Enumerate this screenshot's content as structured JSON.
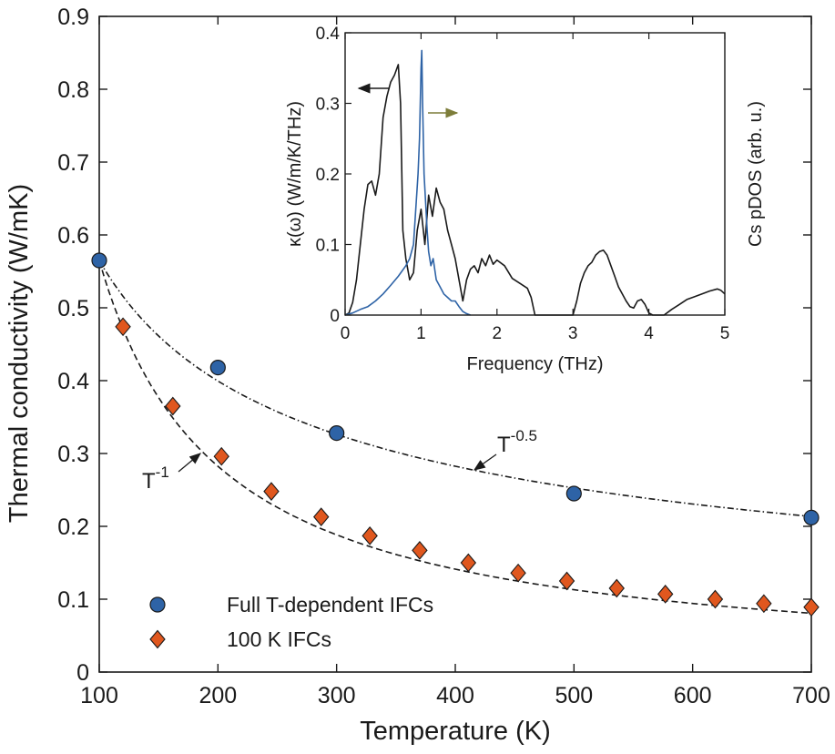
{
  "chart_data": [
    {
      "type": "scatter",
      "xlabel": "Temperature (K)",
      "ylabel": "Thermal conductivity (W/mK)",
      "xlim": [
        100,
        700
      ],
      "ylim": [
        0,
        0.9
      ],
      "xticks": [
        "100",
        "200",
        "300",
        "400",
        "500",
        "600",
        "700"
      ],
      "yticks": [
        "0",
        "0.1",
        "0.2",
        "0.3",
        "0.4",
        "0.5",
        "0.6",
        "0.7",
        "0.8",
        "0.9"
      ],
      "grid": false,
      "legend_position": "bottom-left",
      "series": [
        {
          "name": "Full T-dependent IFCs",
          "marker": "circle",
          "color": "#2e63a6",
          "x": [
            100,
            200,
            300,
            500,
            700
          ],
          "y": [
            0.565,
            0.418,
            0.328,
            0.245,
            0.212
          ]
        },
        {
          "name": "100 K IFCs",
          "marker": "diamond",
          "color": "#e0571e",
          "x": [
            120,
            162,
            203,
            245,
            287,
            328,
            370,
            411,
            453,
            494,
            536,
            577,
            619,
            660,
            700
          ],
          "y": [
            0.474,
            0.365,
            0.296,
            0.248,
            0.213,
            0.187,
            0.167,
            0.15,
            0.136,
            0.125,
            0.115,
            0.107,
            0.1,
            0.094,
            0.089
          ]
        }
      ],
      "fits": [
        {
          "exponent": -0.5,
          "x0": 100,
          "y0": 0.565,
          "style": "dash-dot"
        },
        {
          "exponent": -1,
          "x0": 100,
          "y0": 0.565,
          "style": "dashed"
        }
      ],
      "annotations": [
        {
          "base": "T",
          "sup": "-0.5"
        },
        {
          "base": "T",
          "sup": "-1"
        }
      ]
    },
    {
      "type": "line",
      "xlabel": "Frequency (THz)",
      "ylabel": "κ(ω) (W/m/K/THz)",
      "ylabel_right": "Cs pDOS (arb. u.)",
      "xlim": [
        0,
        5
      ],
      "ylim": [
        0,
        0.4
      ],
      "xticks": [
        "0",
        "1",
        "2",
        "3",
        "4",
        "5"
      ],
      "yticks": [
        "0",
        "0.1",
        "0.2",
        "0.3",
        "0.4"
      ],
      "series": [
        {
          "axis": "left",
          "color": "#1a1a1a",
          "x": [
            0.0,
            0.05,
            0.1,
            0.15,
            0.2,
            0.25,
            0.3,
            0.35,
            0.4,
            0.45,
            0.5,
            0.55,
            0.6,
            0.65,
            0.7,
            0.73,
            0.76,
            0.8,
            0.85,
            0.9,
            0.95,
            1.0,
            1.05,
            1.1,
            1.15,
            1.2,
            1.25,
            1.3,
            1.35,
            1.4,
            1.45,
            1.5,
            1.55,
            1.6,
            1.65,
            1.7,
            1.75,
            1.8,
            1.85,
            1.9,
            1.95,
            2.0,
            2.1,
            2.2,
            2.3,
            2.4,
            2.45,
            2.5,
            2.6,
            2.7,
            2.8,
            2.9,
            3.0,
            3.05,
            3.1,
            3.15,
            3.2,
            3.25,
            3.3,
            3.35,
            3.4,
            3.45,
            3.5,
            3.55,
            3.6,
            3.65,
            3.7,
            3.75,
            3.8,
            3.85,
            3.9,
            3.95,
            4.0,
            4.05,
            4.1,
            4.2,
            4.3,
            4.4,
            4.5,
            4.6,
            4.7,
            4.8,
            4.9,
            4.95,
            5.0
          ],
          "y": [
            0.0,
            0.003,
            0.018,
            0.05,
            0.1,
            0.15,
            0.185,
            0.19,
            0.17,
            0.2,
            0.28,
            0.31,
            0.33,
            0.34,
            0.355,
            0.3,
            0.12,
            0.08,
            0.05,
            0.06,
            0.12,
            0.15,
            0.1,
            0.17,
            0.14,
            0.18,
            0.16,
            0.15,
            0.12,
            0.1,
            0.08,
            0.05,
            0.02,
            0.05,
            0.065,
            0.07,
            0.06,
            0.08,
            0.07,
            0.085,
            0.072,
            0.078,
            0.07,
            0.052,
            0.045,
            0.038,
            0.025,
            0.0,
            0.0,
            0.0,
            0.0,
            0.0,
            0.0,
            0.02,
            0.045,
            0.06,
            0.07,
            0.075,
            0.085,
            0.09,
            0.092,
            0.085,
            0.07,
            0.055,
            0.04,
            0.03,
            0.02,
            0.012,
            0.01,
            0.02,
            0.022,
            0.015,
            0.003,
            0.0,
            0.0,
            0.0,
            0.008,
            0.015,
            0.022,
            0.026,
            0.03,
            0.034,
            0.037,
            0.035,
            0.03
          ]
        },
        {
          "axis": "right",
          "color": "#2e63a6",
          "x": [
            0.0,
            0.1,
            0.2,
            0.3,
            0.4,
            0.5,
            0.6,
            0.7,
            0.8,
            0.85,
            0.9,
            0.93,
            0.96,
            0.98,
            1.0,
            1.01,
            1.02,
            1.04,
            1.06,
            1.08,
            1.1,
            1.13,
            1.16,
            1.2,
            1.25,
            1.3,
            1.35,
            1.4,
            1.45,
            1.5,
            1.55,
            1.6,
            1.65
          ],
          "y": [
            0.0,
            0.003,
            0.008,
            0.012,
            0.02,
            0.03,
            0.042,
            0.055,
            0.07,
            0.08,
            0.1,
            0.15,
            0.2,
            0.25,
            0.35,
            0.375,
            0.3,
            0.2,
            0.16,
            0.12,
            0.09,
            0.07,
            0.08,
            0.05,
            0.04,
            0.03,
            0.025,
            0.02,
            0.02,
            0.012,
            0.005,
            0.002,
            0.0
          ]
        }
      ]
    }
  ]
}
